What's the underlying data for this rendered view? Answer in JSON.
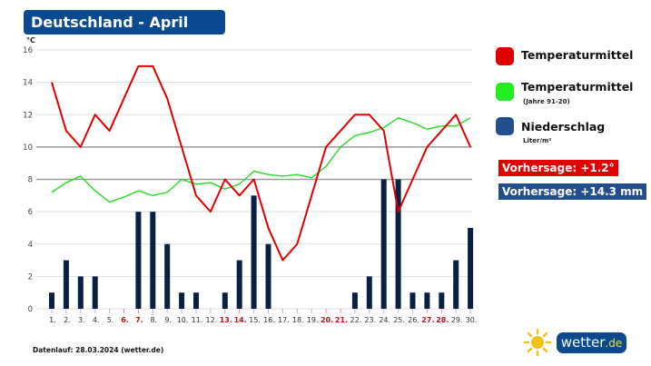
{
  "title": "Deutschland - April",
  "footer": "Datenlauf: 28.03.2024 (wetter.de)",
  "logo": {
    "name": "wetter",
    "tld": ".de"
  },
  "legend": {
    "temp": "Temperaturmittel",
    "normal": "Temperaturmittel",
    "normal_sub": "(Jahre 91-20)",
    "precip": "Niederschlag",
    "precip_sub": "Liter/m²"
  },
  "forecast": {
    "temp": "Vorhersage: +1.2°",
    "precip": "Vorhersage: +14.3 mm"
  },
  "colors": {
    "temp": "#e00000",
    "normal": "#22dd22",
    "precip": "#0a1f44",
    "brand": "#0b4a8f",
    "weekend": "#c0101a"
  },
  "chart_data": {
    "type": "bar+line",
    "ylabel": "°C",
    "ylim": [
      0,
      16
    ],
    "yticks": [
      "0",
      "2",
      "4",
      "6",
      "8",
      "10",
      "12",
      "14",
      "16"
    ],
    "categories": [
      "1.",
      "2.",
      "3.",
      "4.",
      "5.",
      "6.",
      "7.",
      "8.",
      "9.",
      "10.",
      "11.",
      "12.",
      "13.",
      "14.",
      "15.",
      "16.",
      "17.",
      "18.",
      "19.",
      "20.",
      "21.",
      "22.",
      "23.",
      "24.",
      "25.",
      "26.",
      "27.",
      "28.",
      "29.",
      "30."
    ],
    "weekend_days": [
      6,
      7,
      13,
      14,
      20,
      21,
      27,
      28
    ],
    "series": [
      {
        "name": "Temperaturmittel",
        "type": "line",
        "values": [
          14,
          11,
          10,
          12,
          11,
          13,
          15,
          15,
          13,
          10,
          7,
          6,
          8,
          7,
          8,
          5,
          3,
          4,
          7,
          10,
          11,
          12,
          12,
          11,
          6,
          8,
          10,
          11,
          12,
          10
        ]
      },
      {
        "name": "Temperaturmittel (Jahre 91-20)",
        "type": "line",
        "values": [
          7.2,
          7.8,
          8.2,
          7.3,
          6.6,
          6.9,
          7.3,
          7.0,
          7.2,
          8.0,
          7.7,
          7.8,
          7.4,
          7.7,
          8.5,
          8.3,
          8.2,
          8.3,
          8.1,
          8.8,
          10.0,
          10.7,
          10.9,
          11.2,
          11.8,
          11.5,
          11.1,
          11.3,
          11.3,
          11.8
        ]
      },
      {
        "name": "Niederschlag",
        "type": "bar",
        "values": [
          1,
          3,
          2,
          2,
          0,
          0,
          6,
          6,
          4,
          1,
          1,
          0,
          1,
          3,
          7,
          4,
          0,
          0,
          0,
          0,
          0,
          1,
          2,
          8,
          8,
          1,
          1,
          1,
          3,
          5
        ]
      }
    ]
  }
}
